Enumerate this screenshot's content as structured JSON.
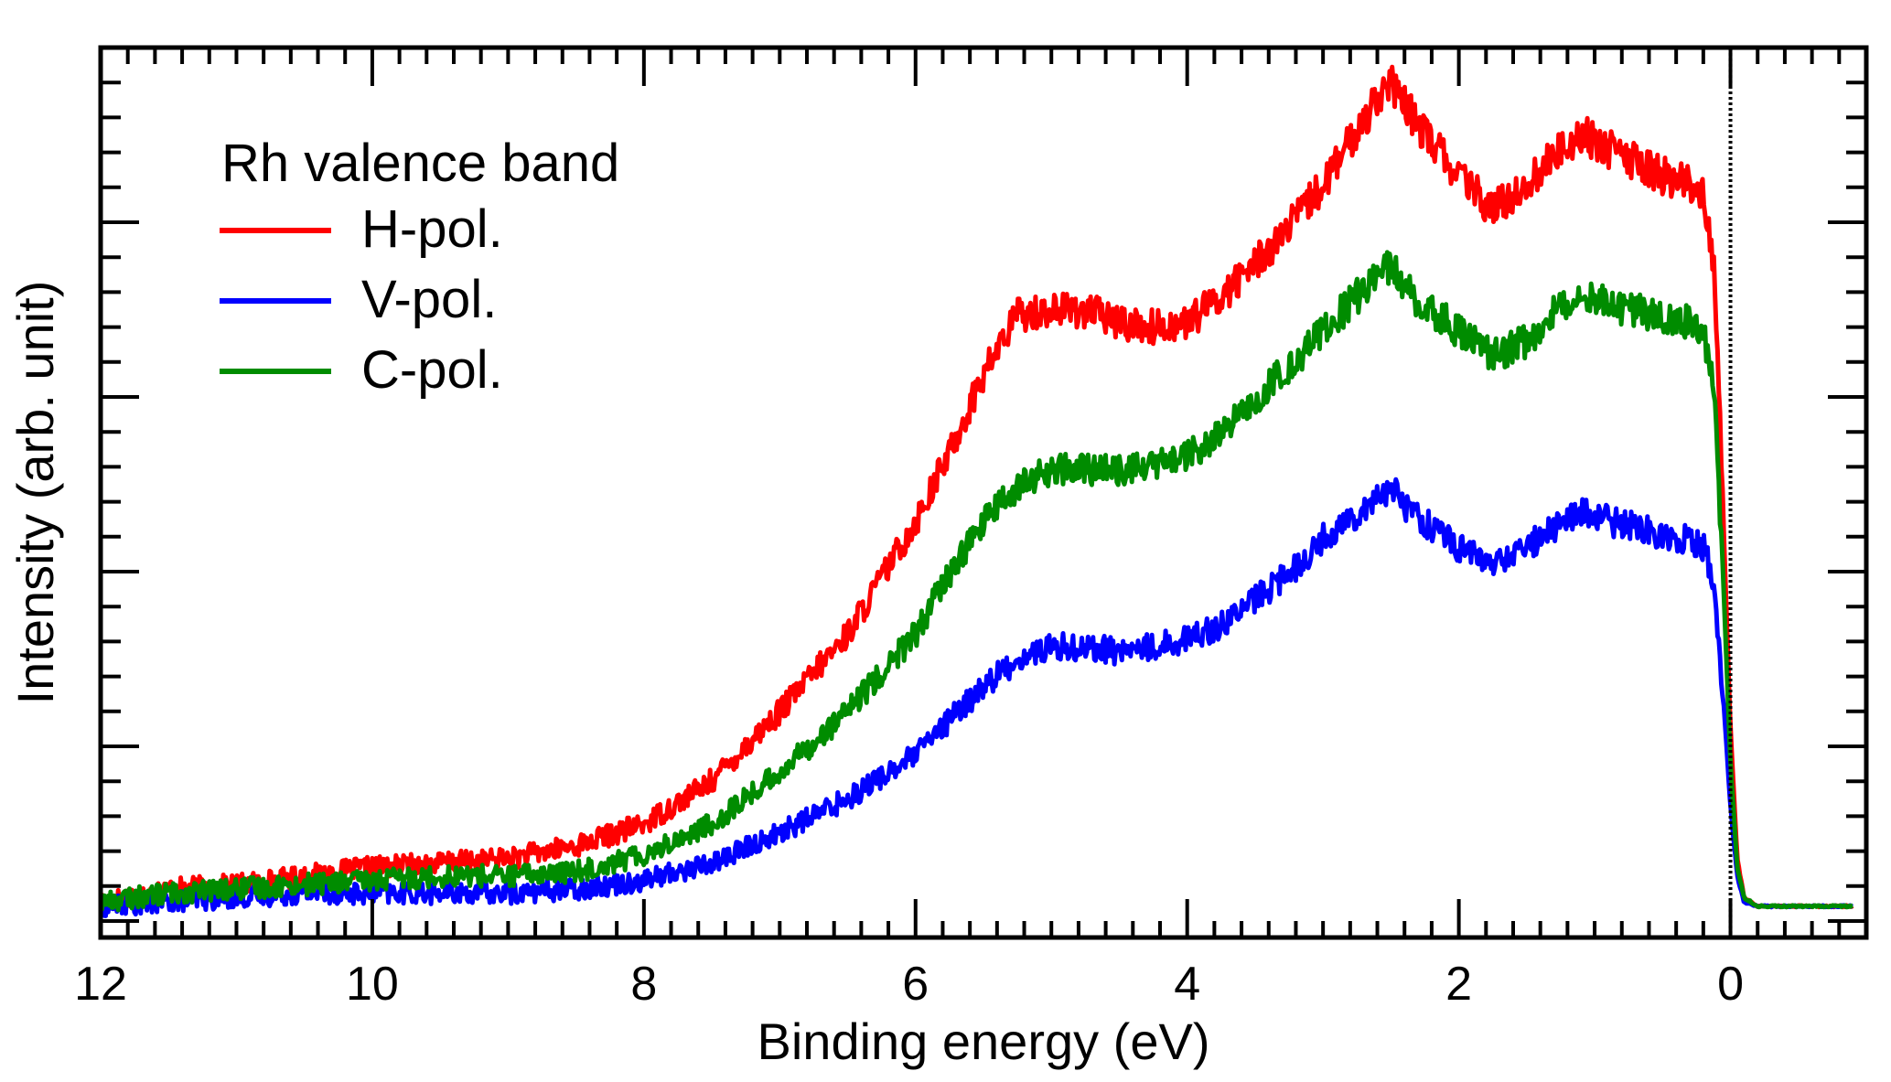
{
  "chart_data": {
    "type": "line",
    "title": "",
    "xlabel": "Binding energy (eV)",
    "ylabel": "Intensity (arb. unit)",
    "xlim": [
      12,
      -1.0
    ],
    "ylim": [
      0,
      1.0
    ],
    "x_ticks": [
      12,
      10,
      8,
      6,
      4,
      2,
      0
    ],
    "x_tick_labels": [
      "12",
      "10",
      "8",
      "6",
      "4",
      "2",
      "0"
    ],
    "y_tick_labels_shown": false,
    "fermi_level_marker": {
      "x": 0,
      "style": "dotted"
    },
    "legend": {
      "title": "Rh valence band",
      "placement": "top-left"
    },
    "series": [
      {
        "name": "H-pol.",
        "color": "#ff0000",
        "x": [
          12.0,
          11.5,
          11.0,
          10.5,
          10.0,
          9.5,
          9.0,
          8.5,
          8.0,
          7.5,
          7.0,
          6.5,
          6.0,
          5.75,
          5.5,
          5.25,
          5.0,
          4.75,
          4.5,
          4.25,
          4.0,
          3.75,
          3.5,
          3.25,
          3.0,
          2.75,
          2.6,
          2.5,
          2.4,
          2.25,
          2.0,
          1.75,
          1.5,
          1.25,
          1.1,
          1.0,
          0.75,
          0.5,
          0.3,
          0.2,
          0.12,
          0.05,
          0.0,
          -0.05,
          -0.1,
          -0.2,
          -0.4,
          -0.6,
          -0.9
        ],
        "y": [
          0.02,
          0.035,
          0.04,
          0.05,
          0.06,
          0.065,
          0.07,
          0.085,
          0.11,
          0.16,
          0.24,
          0.33,
          0.46,
          0.54,
          0.63,
          0.7,
          0.705,
          0.705,
          0.69,
          0.685,
          0.69,
          0.72,
          0.76,
          0.8,
          0.85,
          0.91,
          0.955,
          0.965,
          0.94,
          0.91,
          0.86,
          0.82,
          0.85,
          0.89,
          0.91,
          0.9,
          0.88,
          0.86,
          0.85,
          0.84,
          0.76,
          0.45,
          0.22,
          0.07,
          0.025,
          0.015,
          0.015,
          0.015,
          0.015
        ]
      },
      {
        "name": "V-pol.",
        "color": "#0000ff",
        "x": [
          12.0,
          11.5,
          11.0,
          10.5,
          10.0,
          9.5,
          9.0,
          8.5,
          8.0,
          7.5,
          7.0,
          6.5,
          6.0,
          5.75,
          5.5,
          5.25,
          5.0,
          4.75,
          4.5,
          4.25,
          4.0,
          3.75,
          3.5,
          3.25,
          3.0,
          2.75,
          2.6,
          2.5,
          2.4,
          2.25,
          2.0,
          1.75,
          1.5,
          1.25,
          1.1,
          1.0,
          0.75,
          0.5,
          0.3,
          0.2,
          0.12,
          0.05,
          0.0,
          -0.05,
          -0.1,
          -0.2,
          -0.4,
          -0.6,
          -0.9
        ],
        "y": [
          0.015,
          0.02,
          0.025,
          0.03,
          0.03,
          0.03,
          0.03,
          0.035,
          0.045,
          0.065,
          0.1,
          0.14,
          0.19,
          0.23,
          0.27,
          0.3,
          0.315,
          0.315,
          0.31,
          0.315,
          0.325,
          0.34,
          0.37,
          0.4,
          0.44,
          0.47,
          0.49,
          0.5,
          0.48,
          0.46,
          0.43,
          0.41,
          0.43,
          0.46,
          0.47,
          0.465,
          0.455,
          0.445,
          0.44,
          0.43,
          0.39,
          0.25,
          0.13,
          0.05,
          0.02,
          0.015,
          0.015,
          0.015,
          0.015
        ]
      },
      {
        "name": "C-pol.",
        "color": "#008c00",
        "x": [
          12.0,
          11.5,
          11.0,
          10.5,
          10.0,
          9.5,
          9.0,
          8.5,
          8.0,
          7.5,
          7.0,
          6.5,
          6.0,
          5.75,
          5.5,
          5.25,
          5.0,
          4.75,
          4.5,
          4.25,
          4.0,
          3.75,
          3.5,
          3.25,
          3.0,
          2.75,
          2.6,
          2.5,
          2.4,
          2.25,
          2.0,
          1.75,
          1.5,
          1.25,
          1.1,
          1.0,
          0.75,
          0.5,
          0.3,
          0.2,
          0.12,
          0.05,
          0.0,
          -0.05,
          -0.1,
          -0.2,
          -0.4,
          -0.6,
          -0.9
        ],
        "y": [
          0.02,
          0.03,
          0.035,
          0.04,
          0.045,
          0.05,
          0.05,
          0.055,
          0.075,
          0.11,
          0.17,
          0.24,
          0.33,
          0.4,
          0.46,
          0.5,
          0.52,
          0.52,
          0.52,
          0.525,
          0.535,
          0.56,
          0.6,
          0.64,
          0.68,
          0.72,
          0.75,
          0.755,
          0.73,
          0.71,
          0.68,
          0.65,
          0.67,
          0.71,
          0.73,
          0.72,
          0.705,
          0.7,
          0.69,
          0.68,
          0.62,
          0.38,
          0.18,
          0.06,
          0.025,
          0.015,
          0.015,
          0.015,
          0.015
        ]
      }
    ]
  }
}
